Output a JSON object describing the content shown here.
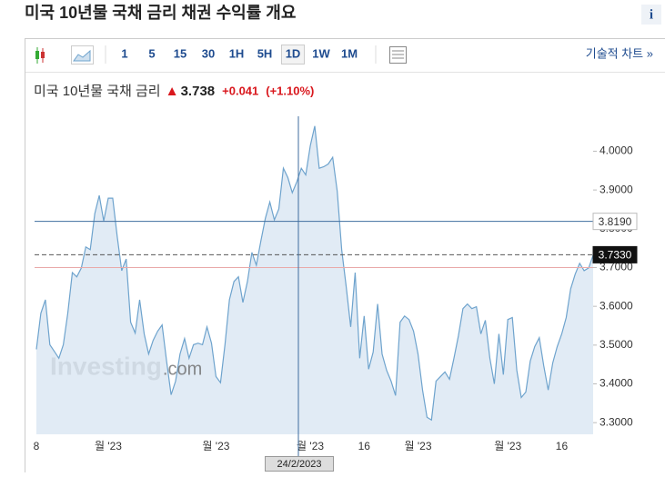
{
  "header": {
    "title": "미국 10년물 국채 금리  채권 수익률 개요",
    "info": "i"
  },
  "toolbar": {
    "intervals": [
      "1",
      "5",
      "15",
      "30",
      "1H",
      "5H",
      "1D",
      "1W",
      "1M"
    ],
    "selected": "1D",
    "technical": "기술적 차트 »"
  },
  "quote": {
    "name": "미국 10년물 국채 금리",
    "price": "3.738",
    "change": "+0.041",
    "change_pct": "(+1.10%)"
  },
  "watermark": {
    "brand": "Investing",
    "suffix": ".com"
  },
  "crosshair": {
    "label": "24/2/2023"
  },
  "chart_data": {
    "type": "area",
    "color": "#6ea3cd",
    "fill": "#dce8f3",
    "categories": [
      "8",
      null,
      null,
      null,
      null,
      null,
      null,
      null,
      null,
      null,
      null,
      null,
      null,
      null,
      null,
      null,
      "월 '23",
      null,
      null,
      null,
      null,
      null,
      null,
      null,
      null,
      null,
      null,
      null,
      null,
      null,
      null,
      null,
      null,
      null,
      null,
      null,
      null,
      null,
      null,
      null,
      "월 '23",
      null,
      null,
      null,
      null,
      null,
      null,
      null,
      null,
      null,
      null,
      null,
      null,
      null,
      null,
      null,
      null,
      null,
      null,
      null,
      null,
      "월 '23",
      null,
      null,
      null,
      null,
      null,
      null,
      null,
      null,
      null,
      null,
      null,
      "16",
      null,
      null,
      null,
      null,
      null,
      null,
      null,
      null,
      null,
      null,
      null,
      "월 '23",
      null,
      null,
      null,
      null,
      null,
      null,
      null,
      null,
      null,
      null,
      null,
      null,
      null,
      null,
      null,
      null,
      null,
      null,
      null,
      "월 '23",
      null,
      null,
      null,
      null,
      null,
      null,
      null,
      null,
      null,
      null,
      null,
      "16",
      null,
      null,
      null,
      null,
      null,
      null,
      null
    ],
    "values": [
      3.489,
      3.582,
      3.617,
      3.501,
      3.484,
      3.466,
      3.501,
      3.582,
      3.687,
      3.676,
      3.699,
      3.753,
      3.746,
      3.839,
      3.886,
      3.82,
      3.879,
      3.879,
      3.781,
      3.692,
      3.722,
      3.559,
      3.531,
      3.617,
      3.529,
      3.477,
      3.512,
      3.536,
      3.552,
      3.459,
      3.372,
      3.407,
      3.477,
      3.517,
      3.466,
      3.501,
      3.505,
      3.501,
      3.547,
      3.505,
      3.419,
      3.403,
      3.501,
      3.617,
      3.664,
      3.676,
      3.61,
      3.664,
      3.739,
      3.706,
      3.769,
      3.827,
      3.869,
      3.823,
      3.851,
      3.956,
      3.932,
      3.893,
      3.921,
      3.956,
      3.939,
      4.014,
      4.065,
      3.956,
      3.96,
      3.967,
      3.984,
      3.897,
      3.746,
      3.652,
      3.547,
      3.687,
      3.466,
      3.575,
      3.438,
      3.482,
      3.606,
      3.477,
      3.435,
      3.407,
      3.37,
      3.559,
      3.575,
      3.566,
      3.536,
      3.477,
      3.384,
      3.314,
      3.307,
      3.407,
      3.419,
      3.431,
      3.412,
      3.466,
      3.524,
      3.594,
      3.606,
      3.594,
      3.599,
      3.529,
      3.564,
      3.466,
      3.4,
      3.529,
      3.424,
      3.566,
      3.571,
      3.435,
      3.365,
      3.379,
      3.459,
      3.496,
      3.519,
      3.447,
      3.384,
      3.454,
      3.496,
      3.529,
      3.571,
      3.645,
      3.683,
      3.711,
      3.692,
      3.699,
      3.732
    ],
    "ylim": [
      3.27,
      4.09
    ],
    "yticks": [
      {
        "value": 3.3,
        "label": "3.3000"
      },
      {
        "value": 3.4,
        "label": "3.4000"
      },
      {
        "value": 3.5,
        "label": "3.5000"
      },
      {
        "value": 3.6,
        "label": "3.6000"
      },
      {
        "value": 3.7,
        "label": "3.7000"
      },
      {
        "value": 3.8,
        "label": "3.8000"
      },
      {
        "value": 3.9,
        "label": "3.9000"
      },
      {
        "value": 4.0,
        "label": "4.0000"
      }
    ],
    "reference_lines": [
      {
        "value": 3.7,
        "color": "#e9a9a9"
      },
      {
        "value": 3.819,
        "label": "3.8190",
        "color": "#3f6e9f"
      },
      {
        "value": 3.733,
        "label": "3.7330",
        "color": "#555555",
        "dashed": true
      }
    ]
  }
}
